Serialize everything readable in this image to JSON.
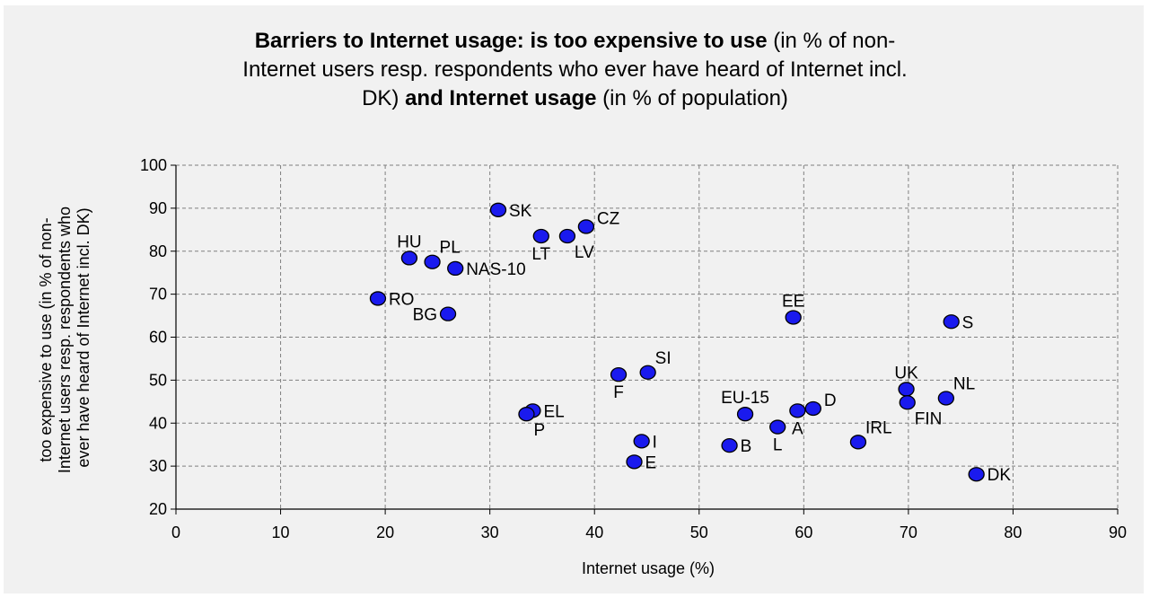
{
  "chart_data": {
    "type": "scatter",
    "title": {
      "line1_bold": "Barriers to Internet usage: is too expensive to use",
      "line1_rest": " (in % of non-",
      "line2": "Internet users resp. respondents who ever have heard of Internet incl.",
      "line3_start": "DK) ",
      "line3_bold": "and Internet usage",
      "line3_rest": " (in % of population)"
    },
    "xlabel": "Internet usage (%)",
    "ylabel_lines": [
      "too expensive to use (in % of non-",
      "Internet users resp. respondents who",
      "ever have heard of Internet incl. DK)"
    ],
    "xlim": [
      0,
      90
    ],
    "ylim": [
      20,
      100
    ],
    "xticks": [
      0,
      10,
      20,
      30,
      40,
      50,
      60,
      70,
      80,
      90
    ],
    "yticks": [
      20,
      30,
      40,
      50,
      60,
      70,
      80,
      90,
      100
    ],
    "grid": true,
    "marker_color": "#1a1aee",
    "points": [
      {
        "label": "SK",
        "x": 30.8,
        "y": 89.6,
        "pos": "right"
      },
      {
        "label": "CZ",
        "x": 39.2,
        "y": 85.7,
        "pos": "right-up"
      },
      {
        "label": "LT",
        "x": 34.9,
        "y": 83.5,
        "pos": "below"
      },
      {
        "label": "LV",
        "x": 37.4,
        "y": 83.5,
        "pos": "below-right"
      },
      {
        "label": "HU",
        "x": 22.3,
        "y": 78.4,
        "pos": "above"
      },
      {
        "label": "PL",
        "x": 24.5,
        "y": 77.5,
        "pos": "above-right"
      },
      {
        "label": "NAS-10",
        "x": 26.7,
        "y": 76.0,
        "pos": "right"
      },
      {
        "label": "RO",
        "x": 19.3,
        "y": 69.0,
        "pos": "right"
      },
      {
        "label": "BG",
        "x": 26.0,
        "y": 65.4,
        "pos": "left"
      },
      {
        "label": "EE",
        "x": 59.0,
        "y": 64.6,
        "pos": "above"
      },
      {
        "label": "S",
        "x": 74.1,
        "y": 63.6,
        "pos": "right"
      },
      {
        "label": "SI",
        "x": 45.1,
        "y": 51.8,
        "pos": "above-right"
      },
      {
        "label": "F",
        "x": 42.3,
        "y": 51.3,
        "pos": "below"
      },
      {
        "label": "UK",
        "x": 69.8,
        "y": 47.9,
        "pos": "above"
      },
      {
        "label": "NL",
        "x": 73.6,
        "y": 45.8,
        "pos": "above-right"
      },
      {
        "label": "FIN",
        "x": 69.9,
        "y": 44.8,
        "pos": "below-right"
      },
      {
        "label": "EU-15",
        "x": 54.4,
        "y": 42.1,
        "pos": "above"
      },
      {
        "label": "D",
        "x": 60.9,
        "y": 43.4,
        "pos": "right-up"
      },
      {
        "label": "A",
        "x": 59.4,
        "y": 42.9,
        "pos": "below"
      },
      {
        "label": "EL",
        "x": 34.1,
        "y": 42.9,
        "pos": "right"
      },
      {
        "label": "P",
        "x": 33.5,
        "y": 42.1,
        "pos": "below-right"
      },
      {
        "label": "L",
        "x": 57.5,
        "y": 39.1,
        "pos": "below"
      },
      {
        "label": "IRL",
        "x": 65.2,
        "y": 35.6,
        "pos": "above-right"
      },
      {
        "label": "I",
        "x": 44.5,
        "y": 35.8,
        "pos": "right"
      },
      {
        "label": "B",
        "x": 52.9,
        "y": 34.8,
        "pos": "right"
      },
      {
        "label": "E",
        "x": 43.8,
        "y": 31.0,
        "pos": "right"
      },
      {
        "label": "DK",
        "x": 76.5,
        "y": 28.1,
        "pos": "right"
      }
    ]
  }
}
